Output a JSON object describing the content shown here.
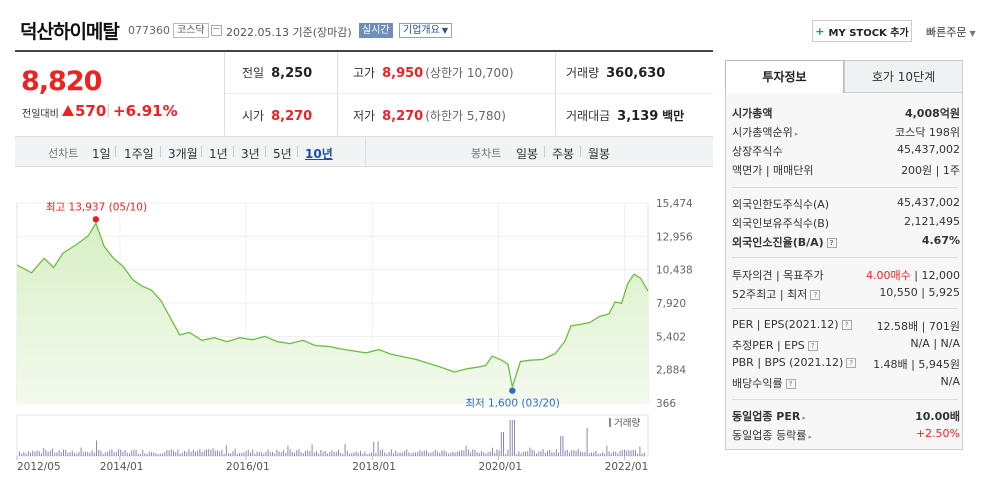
{
  "header": {
    "company": "덕산하이메탈",
    "code": "077360",
    "market": "코스닥",
    "date": "2022.05.13  기준(장마감)",
    "realtime": "실시간",
    "company_info": "기업개요",
    "mystock": "MY STOCK 추가",
    "quick_order": "빠른주문"
  },
  "price": {
    "current": "8,820",
    "change_label": "전일대비",
    "change": "570",
    "change_pct": "+6.91%"
  },
  "quote": {
    "prev_close_label": "전일",
    "prev_close": "8,250",
    "high_label": "고가",
    "high": "8,950",
    "upper_limit": "(상한가 10,700)",
    "volume_label": "거래량",
    "volume": "360,630",
    "open_label": "시가",
    "open": "8,270",
    "low_label": "저가",
    "low": "8,270",
    "lower_limit": "(하한가 5,780)",
    "amount_label": "거래대금",
    "amount": "3,139",
    "amount_unit": "백만"
  },
  "period_bar": {
    "line_title": "선차트",
    "line_opts": [
      "1일",
      "1주일",
      "3개월",
      "1년",
      "3년",
      "5년",
      "10년"
    ],
    "active_line": "10년",
    "candle_title": "봉차트",
    "candle_opts": [
      "일봉",
      "주봉",
      "월봉"
    ]
  },
  "chart_data": {
    "type": "area",
    "y_ticks": [
      "15,474",
      "12,956",
      "10,438",
      "7,920",
      "5,402",
      "2,884",
      "366"
    ],
    "ylim": [
      366,
      15474
    ],
    "x_ticks": [
      "2012/05",
      "2014/01",
      "2016/01",
      "2018/01",
      "2020/01",
      "2022/01"
    ],
    "x_tick_years": [
      2012.37,
      2014.0,
      2016.0,
      2018.0,
      2020.0,
      2022.0
    ],
    "x_range": [
      2012.37,
      2022.37
    ],
    "series": [
      {
        "x": [
          2012.37,
          2012.6,
          2012.8,
          2012.95,
          2013.1,
          2013.3,
          2013.5,
          2013.62,
          2013.75,
          2013.9,
          2014.05,
          2014.2,
          2014.35,
          2014.5,
          2014.65,
          2014.8,
          2014.95,
          2015.1,
          2015.3,
          2015.5,
          2015.7,
          2015.9,
          2016.1,
          2016.3,
          2016.5,
          2016.7,
          2016.9,
          2017.1,
          2017.3,
          2017.5,
          2017.7,
          2017.9,
          2018.1,
          2018.3,
          2018.5,
          2018.7,
          2018.9,
          2019.1,
          2019.3,
          2019.5,
          2019.7,
          2019.8,
          2019.9,
          2020.05,
          2020.15,
          2020.22,
          2020.35,
          2020.5,
          2020.7,
          2020.9,
          2021.05,
          2021.15,
          2021.3,
          2021.45,
          2021.6,
          2021.75,
          2021.85,
          2021.95,
          2022.05,
          2022.15,
          2022.25,
          2022.37
        ],
        "values": [
          10800,
          10200,
          11300,
          10600,
          11700,
          12300,
          13000,
          13937,
          12200,
          11300,
          10700,
          9700,
          9200,
          8900,
          8100,
          6800,
          5500,
          5700,
          5100,
          5300,
          5000,
          5300,
          5150,
          5400,
          5000,
          4850,
          5100,
          4700,
          4650,
          4450,
          4300,
          4150,
          4400,
          4050,
          3850,
          3650,
          3350,
          3050,
          2700,
          2950,
          3100,
          3200,
          3900,
          3600,
          3300,
          1600,
          3500,
          3600,
          3650,
          4100,
          5000,
          6200,
          6300,
          6450,
          6900,
          7100,
          8000,
          7900,
          9400,
          10100,
          9800,
          8820
        ]
      }
    ],
    "max_label": "최고 13,937 (05/10)",
    "min_label": "최저 1,600 (03/20)",
    "volume_legend": "거래량",
    "colors": {
      "line": "#69c03d",
      "fill_top": "#d8efc6",
      "fill_bottom": "#f3faee",
      "max_dot": "#e22222",
      "min_dot": "#2d6ec6",
      "volume": "#8f86b5"
    }
  },
  "tabs": {
    "active": "투자정보",
    "inactive": "호가 10단계"
  },
  "invest": {
    "rows1": [
      {
        "k": "시가총액",
        "v": "4,008억원",
        "kb": true,
        "vb": true
      },
      {
        "k": "시가총액순위",
        "v": "코스닥 198위",
        "tri": true
      },
      {
        "k": "상장주식수",
        "v": "45,437,002"
      },
      {
        "k": "액면가 | 매매단위",
        "v": "200원 | 1주"
      }
    ],
    "rows2": [
      {
        "k": "외국인한도주식수(A)",
        "v": "45,437,002"
      },
      {
        "k": "외국인보유주식수(B)",
        "v": "2,121,495"
      },
      {
        "k": "외국인소진율(B/A)",
        "v": "4.67%",
        "kb": true,
        "vb": true,
        "help": true
      }
    ],
    "rows3": [
      {
        "k": "투자의견 | 목표주가",
        "v_red": "4.00매수",
        "v2": " | 12,000"
      },
      {
        "k": "52주최고 | 최저",
        "v": "10,550 | 5,925",
        "help": true
      }
    ],
    "rows4": [
      {
        "k": "PER | EPS(2021.12)",
        "v": "12.58배 | 701원",
        "help": true
      },
      {
        "k": "추정PER | EPS",
        "v": "N/A | N/A",
        "help": true
      },
      {
        "k": "PBR | BPS (2021.12)",
        "v": "1.48배 | 5,945원",
        "help": true
      },
      {
        "k": "배당수익률",
        "v": "N/A",
        "help": true
      }
    ],
    "rows5": [
      {
        "k": "동일업종 PER",
        "v": "10.00배",
        "kb": true,
        "vb": true,
        "tri": true
      },
      {
        "k": "동일업종 등락률",
        "v": "+2.50%",
        "vred": true,
        "tri": true
      }
    ]
  }
}
